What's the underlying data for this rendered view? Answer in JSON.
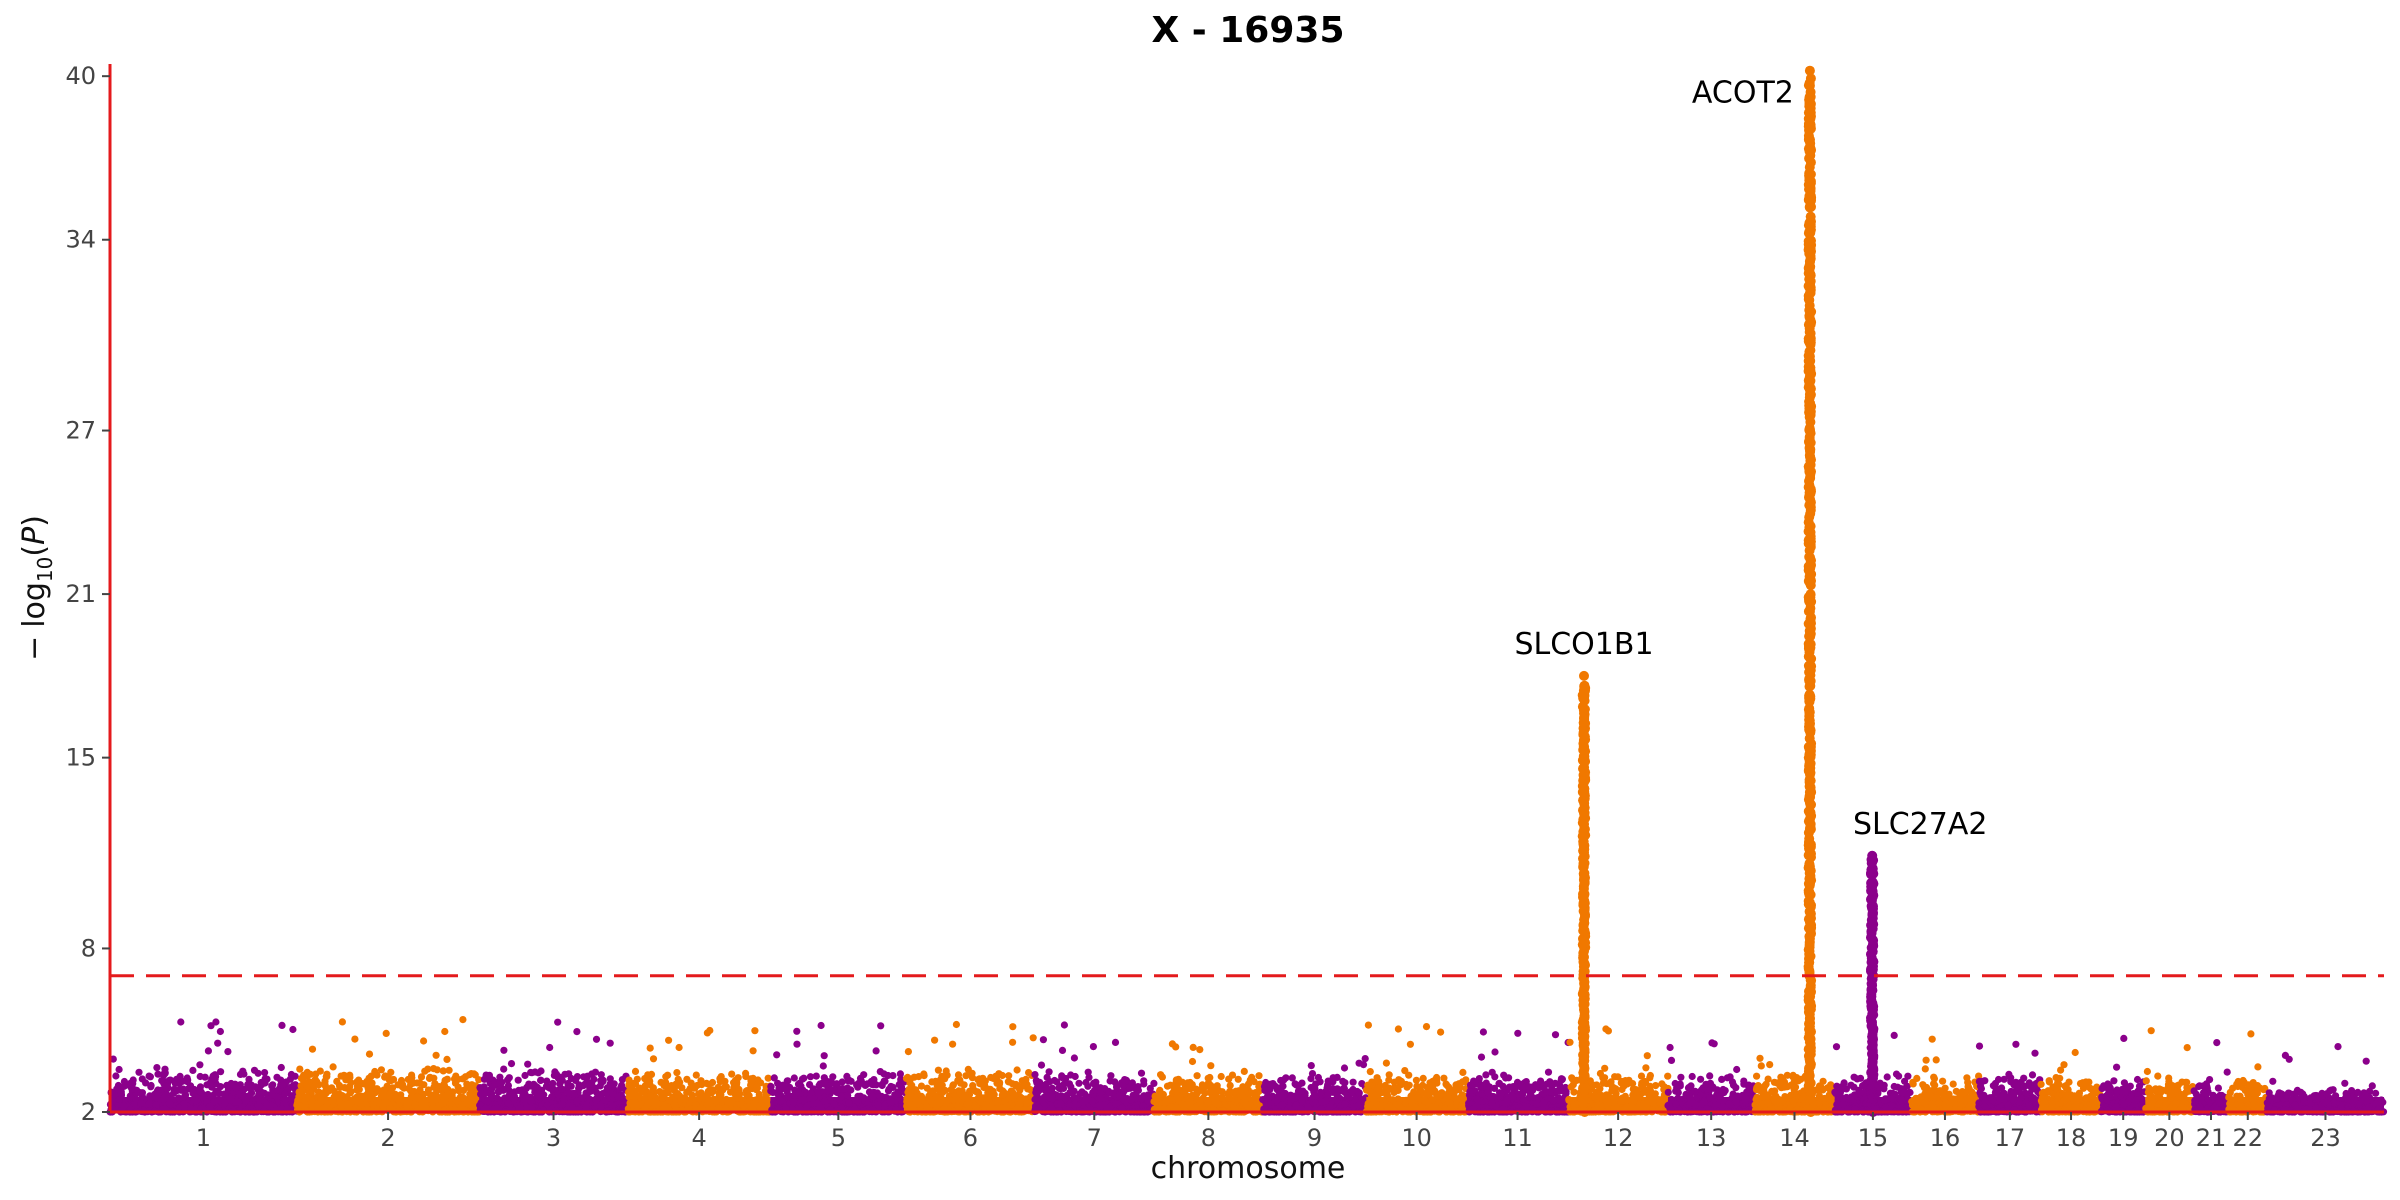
{
  "chart_data": {
    "type": "scatter",
    "subtype": "manhattan",
    "title": "X - 16935",
    "xlabel": "chromosome",
    "ylabel": "−log10(P)",
    "ylim": [
      2,
      40.3
    ],
    "yticks": [
      2,
      8,
      15,
      21,
      27,
      34,
      40
    ],
    "threshold": {
      "value": 7.0,
      "style": "dashed",
      "color": "#e41a1c"
    },
    "axis_color": "#e41a1c",
    "colors": {
      "odd": "#8b008b",
      "even": "#f07800"
    },
    "chromosomes": [
      {
        "label": "1",
        "length": 249,
        "background_max": 3.8
      },
      {
        "label": "2",
        "length": 243,
        "background_max": 3.8
      },
      {
        "label": "3",
        "length": 198,
        "background_max": 3.7
      },
      {
        "label": "4",
        "length": 190,
        "background_max": 3.6
      },
      {
        "label": "5",
        "length": 181,
        "background_max": 3.6
      },
      {
        "label": "6",
        "length": 171,
        "background_max": 3.7
      },
      {
        "label": "7",
        "length": 159,
        "background_max": 3.6
      },
      {
        "label": "8",
        "length": 145,
        "background_max": 3.5
      },
      {
        "label": "9",
        "length": 138,
        "background_max": 3.4
      },
      {
        "label": "10",
        "length": 134,
        "background_max": 3.6
      },
      {
        "label": "11",
        "length": 135,
        "background_max": 3.5
      },
      {
        "label": "12",
        "length": 133,
        "background_max": 3.6
      },
      {
        "label": "13",
        "length": 115,
        "background_max": 3.4
      },
      {
        "label": "14",
        "length": 107,
        "background_max": 3.5
      },
      {
        "label": "15",
        "length": 102,
        "background_max": 3.5
      },
      {
        "label": "16",
        "length": 90,
        "background_max": 3.4
      },
      {
        "label": "17",
        "length": 83,
        "background_max": 3.5
      },
      {
        "label": "18",
        "length": 80,
        "background_max": 3.4
      },
      {
        "label": "19",
        "length": 59,
        "background_max": 3.3
      },
      {
        "label": "20",
        "length": 64,
        "background_max": 3.4
      },
      {
        "label": "21",
        "length": 47,
        "background_max": 3.3
      },
      {
        "label": "22",
        "length": 51,
        "background_max": 3.3
      },
      {
        "label": "23",
        "length": 156,
        "background_max": 2.9
      }
    ],
    "peaks": [
      {
        "gene": "SLCO1B1",
        "chromosome": "12",
        "position": 21,
        "top": 18.0
      },
      {
        "gene": "ACOT2",
        "chromosome": "14",
        "position": 74,
        "top": 40.2
      },
      {
        "gene": "SLC27A2",
        "chromosome": "15",
        "position": 50,
        "top": 11.4
      }
    ],
    "legend": "none",
    "grid": false
  }
}
